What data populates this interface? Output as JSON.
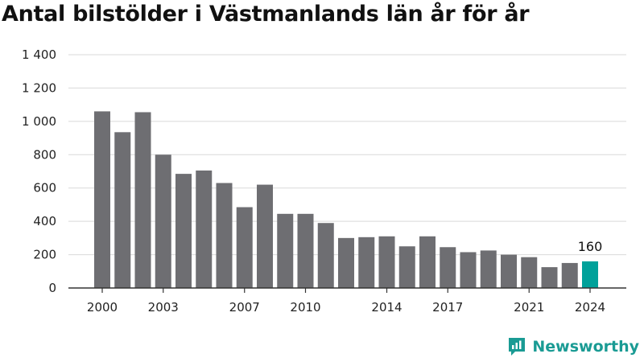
{
  "header": {
    "title": "Antal bilstölder i Västmanlands län år för år"
  },
  "brand": {
    "name": "Newsworthy",
    "color": "#1a9b94"
  },
  "colors": {
    "bar": "#6e6e72",
    "highlight": "#00a19a",
    "grid": "#d9d9d9",
    "axis": "#333333"
  },
  "chart_data": {
    "type": "bar",
    "title": "Antal bilstölder i Västmanlands län år för år",
    "xlabel": "",
    "ylabel": "",
    "categories": [
      2000,
      2001,
      2002,
      2003,
      2004,
      2005,
      2006,
      2007,
      2008,
      2009,
      2010,
      2011,
      2012,
      2013,
      2014,
      2015,
      2016,
      2017,
      2018,
      2019,
      2020,
      2021,
      2022,
      2023,
      2024
    ],
    "values": [
      1060,
      935,
      1055,
      800,
      685,
      705,
      630,
      485,
      620,
      445,
      445,
      390,
      300,
      305,
      310,
      250,
      310,
      245,
      215,
      225,
      200,
      185,
      125,
      150,
      160
    ],
    "ylim": [
      0,
      1400
    ],
    "yticks": [
      0,
      200,
      400,
      600,
      800,
      1000,
      1200,
      1400
    ],
    "ytick_labels": [
      "0",
      "200",
      "400",
      "600",
      "800",
      "1 000",
      "1 200",
      "1 400"
    ],
    "xtick_labels": [
      "2000",
      "2003",
      "2007",
      "2010",
      "2014",
      "2017",
      "2021",
      "2024"
    ],
    "highlight_category": 2024,
    "data_labels": [
      {
        "category": 2024,
        "text": "160"
      }
    ],
    "grid": true
  }
}
